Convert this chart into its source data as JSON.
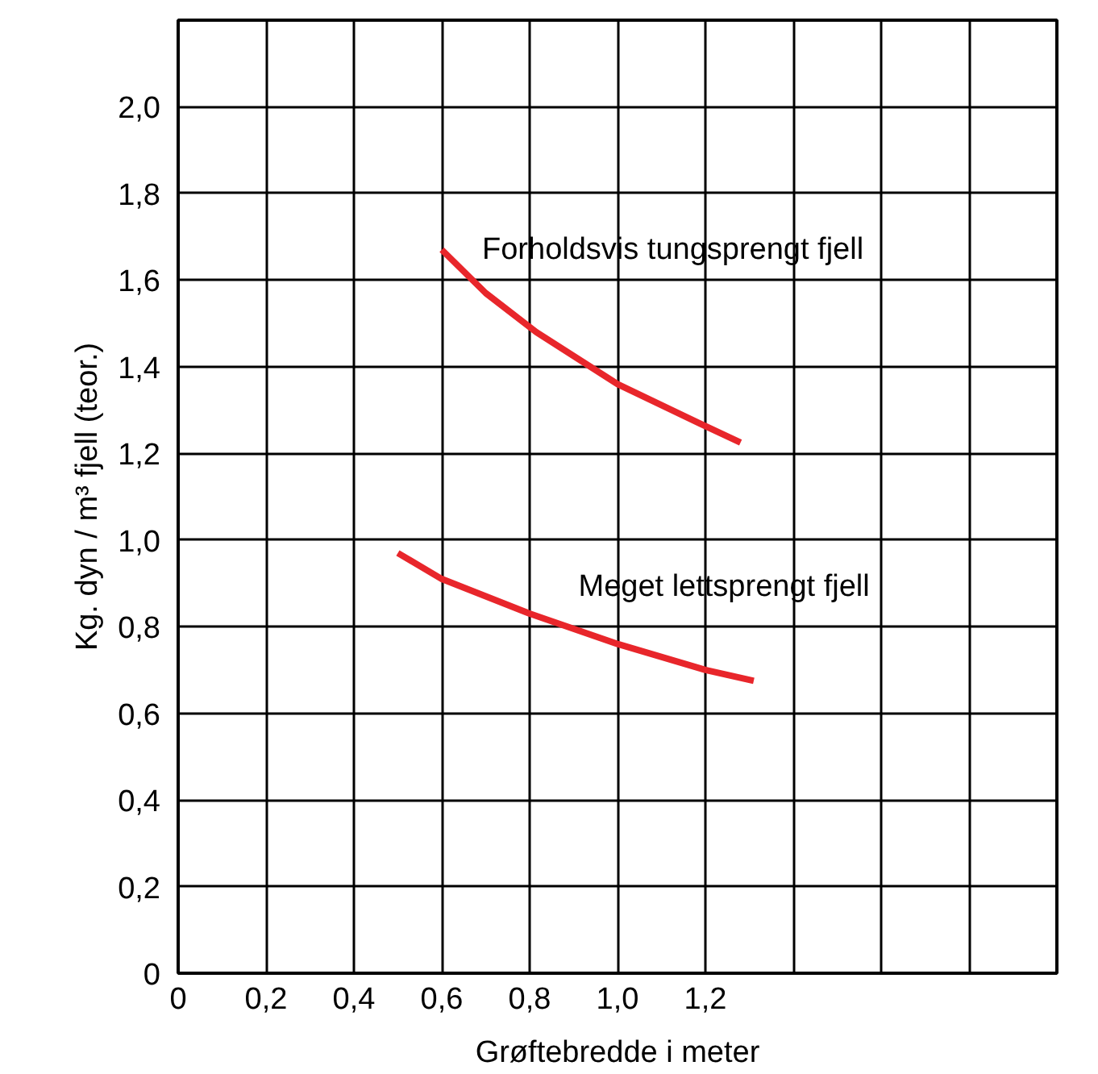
{
  "chart_data": {
    "type": "line",
    "xlabel": "Grøftebredde i meter",
    "ylabel": "Kg. dyn / m³ fjell (teor.)",
    "xlim": [
      0,
      2.0
    ],
    "ylim": [
      0,
      2.2
    ],
    "xticks": [
      0,
      {
        "value": 0.2,
        "label": "0,2"
      },
      {
        "value": 0.4,
        "label": "0,4"
      },
      {
        "value": 0.6,
        "label": "0,6"
      },
      {
        "value": 0.8,
        "label": "0,8"
      },
      {
        "value": 1.0,
        "label": "1,0"
      },
      {
        "value": 1.2,
        "label": "1,2"
      },
      {
        "value": 1.4,
        "label": null
      },
      {
        "value": 1.6,
        "label": null
      },
      {
        "value": 1.8,
        "label": null
      },
      {
        "value": 2.0,
        "label": null
      }
    ],
    "yticks": [
      0,
      {
        "value": 0.2,
        "label": "0,2"
      },
      {
        "value": 0.4,
        "label": "0,4"
      },
      {
        "value": 0.6,
        "label": "0,6"
      },
      {
        "value": 0.8,
        "label": "0,8"
      },
      {
        "value": 1.0,
        "label": "1,0"
      },
      {
        "value": 1.2,
        "label": "1,2"
      },
      {
        "value": 1.4,
        "label": "1,4"
      },
      {
        "value": 1.6,
        "label": "1,6"
      },
      {
        "value": 1.8,
        "label": "1,8"
      },
      {
        "value": 2.0,
        "label": "2,0"
      },
      {
        "value": 2.2,
        "label": null
      }
    ],
    "grid": true,
    "marker": "none",
    "line_style": "solid",
    "series": [
      {
        "name": "Forholdsvis tungsprengt fjell",
        "color": "#e8262b",
        "x": [
          0.6,
          0.7,
          0.815,
          1.0,
          1.185,
          1.28
        ],
        "values": [
          1.67,
          1.57,
          1.48,
          1.36,
          1.27,
          1.225
        ]
      },
      {
        "name": "Meget lettsprengt fjell",
        "color": "#e8262b",
        "x": [
          0.5,
          0.6,
          0.8,
          1.0,
          1.2,
          1.31
        ],
        "values": [
          0.97,
          0.91,
          0.83,
          0.76,
          0.7,
          0.675
        ]
      }
    ]
  }
}
